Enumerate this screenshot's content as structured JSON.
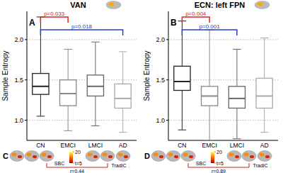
{
  "chart_data": [
    {
      "type": "box",
      "panel": "A",
      "title": "VAN",
      "y_label": "Sample Entropy",
      "categories": [
        "CN",
        "EMCI",
        "LMCI",
        "AD"
      ],
      "boxes": [
        {
          "min": 1.05,
          "q1": 1.32,
          "median": 1.42,
          "q3": 1.58,
          "max": 2.28
        },
        {
          "min": 0.87,
          "q1": 1.18,
          "median": 1.33,
          "q3": 1.5,
          "max": 1.88
        },
        {
          "min": 0.93,
          "q1": 1.3,
          "median": 1.42,
          "q3": 1.56,
          "max": 1.97
        },
        {
          "min": 0.85,
          "q1": 1.15,
          "median": 1.27,
          "q3": 1.45,
          "max": 1.85
        }
      ],
      "colors": [
        "#222222",
        "#888888",
        "#666666",
        "#aaaaaa"
      ],
      "ylim": [
        0.75,
        2.35
      ],
      "yticks": [
        {
          "value": 1,
          "label": "1.0"
        },
        {
          "value": 1.5,
          "label": "1.5"
        },
        {
          "value": 2,
          "label": "2.0"
        }
      ],
      "grid": true,
      "annotations": [
        {
          "between": [
            "CN",
            "EMCI"
          ],
          "label": "p=0.033",
          "color": "#e02020"
        },
        {
          "between": [
            "CN",
            "AD"
          ],
          "label": "p=0.018",
          "color": "#2040d0"
        }
      ],
      "bottom_panel": {
        "panel": "C",
        "labels": [
          "SBC",
          "TradIC"
        ],
        "correlation_label": "r=0.44",
        "colorbar": {
          "range": [
            5,
            20
          ],
          "ticks": [
            20,
            {
              "value": 5,
              "label": "t=5"
            }
          ]
        }
      }
    },
    {
      "type": "box",
      "panel": "B",
      "title": "ECN: left FPN",
      "y_label": "Sample Entropy",
      "categories": [
        "CN",
        "EMCI",
        "LMCI",
        "AD"
      ],
      "boxes": [
        {
          "min": 0.88,
          "q1": 1.37,
          "median": 1.48,
          "q3": 1.67,
          "max": 2.23
        },
        {
          "min": 0.75,
          "q1": 1.18,
          "median": 1.3,
          "q3": 1.42,
          "max": 2.12
        },
        {
          "min": 0.77,
          "q1": 1.15,
          "median": 1.27,
          "q3": 1.42,
          "max": 1.88
        },
        {
          "min": 0.85,
          "q1": 1.15,
          "median": 1.3,
          "q3": 1.52,
          "max": 2.02
        }
      ],
      "colors": [
        "#222222",
        "#888888",
        "#666666",
        "#aaaaaa"
      ],
      "ylim": [
        0.75,
        2.35
      ],
      "yticks": [
        {
          "value": 1,
          "label": "1.0"
        },
        {
          "value": 1.5,
          "label": "1.5"
        },
        {
          "value": 2,
          "label": "2.0"
        }
      ],
      "grid": true,
      "annotations": [
        {
          "between": [
            "CN",
            "EMCI"
          ],
          "label": "p=0.004",
          "color": "#e02020"
        },
        {
          "between": [
            "CN",
            "LMCI"
          ],
          "label": "p=0.001",
          "color": "#2040d0"
        }
      ],
      "bottom_panel": {
        "panel": "D",
        "labels": [
          "SBC",
          "TradIC"
        ],
        "correlation_label": "r=0.89",
        "colorbar": {
          "range": [
            5,
            20
          ],
          "ticks": [
            20,
            {
              "value": 5,
              "label": "t=5"
            }
          ]
        }
      }
    }
  ]
}
